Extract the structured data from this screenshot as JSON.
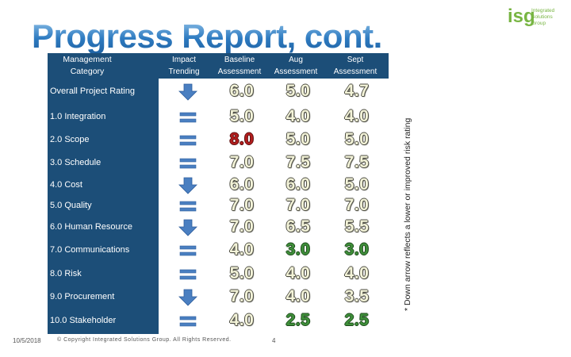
{
  "title": "Progress Report, cont.",
  "logo": {
    "mark": "isg",
    "line1": "Integrated",
    "line2": "Solutions",
    "line3": "Group"
  },
  "header": {
    "category": "Management Category",
    "trending": "Impact Trending",
    "baseline": "Baseline Assessment",
    "aug": "Aug Assessment",
    "sept": "Sept Assessment"
  },
  "rows": [
    {
      "label": "Overall Project Rating",
      "trend": "down-arrow",
      "baseline": "6.0",
      "aug": "5.0",
      "sept": "4.7"
    },
    {
      "label": "1.0 Integration",
      "trend": "equal",
      "baseline": "5.0",
      "aug": "4.0",
      "sept": "4.0"
    },
    {
      "label": "2.0 Scope",
      "trend": "equal",
      "baseline": "8.0",
      "aug": "5.0",
      "sept": "5.0"
    },
    {
      "label": "3.0 Schedule",
      "trend": "equal",
      "baseline": "7.0",
      "aug": "7.5",
      "sept": "7.5"
    },
    {
      "label": "4.0 Cost",
      "trend": "down-arrow",
      "baseline": "6.0",
      "aug": "6.0",
      "sept": "5.0"
    },
    {
      "label": "5.0 Quality",
      "trend": "equal",
      "baseline": "7.0",
      "aug": "7.0",
      "sept": "7.0"
    },
    {
      "label": "6.0 Human Resource",
      "trend": "down-arrow",
      "baseline": "7.0",
      "aug": "6.5",
      "sept": "5.5"
    },
    {
      "label": "7.0 Communications",
      "trend": "equal",
      "baseline": "4.0",
      "aug": "3.0",
      "sept": "3.0"
    },
    {
      "label": "8.0 Risk",
      "trend": "equal",
      "baseline": "5.0",
      "aug": "4.0",
      "sept": "4.0"
    },
    {
      "label": "9.0 Procurement",
      "trend": "down-arrow",
      "baseline": "7.0",
      "aug": "4.0",
      "sept": "3.5"
    },
    {
      "label": "10.0 Stakeholder",
      "trend": "equal",
      "baseline": "4.0",
      "aug": "2.5",
      "sept": "2.5"
    }
  ],
  "note": "* Down arrow reflects a lower or improved risk rating",
  "footer": {
    "date": "10/5/2018",
    "copyright": "© Copyright Integrated Solutions Group. All Rights Reserved.",
    "page": "4"
  },
  "colors": {
    "header_bg": "#1c4e78",
    "icon_blue": "#4a7fc1",
    "high": "#b31d1d",
    "low": "#3f8f3a"
  }
}
